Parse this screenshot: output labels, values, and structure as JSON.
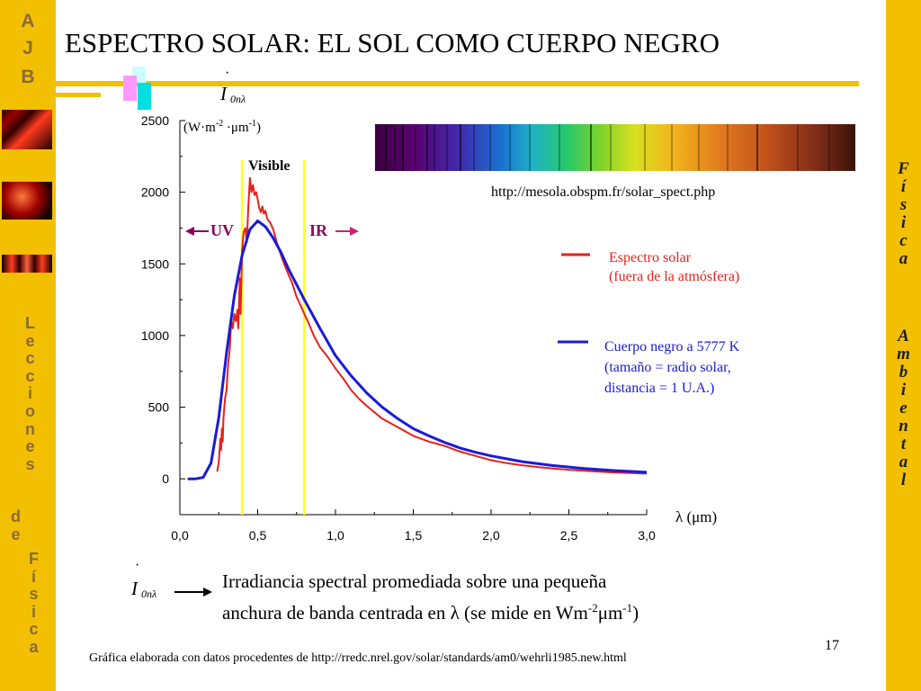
{
  "slide": {
    "title": "ESPECTRO SOLAR: EL SOL COMO CUERPO NEGRO",
    "page_number": "17",
    "footer_credit": "Gráfica elaborada con datos procedentes de http://rredc.nrel.gov/solar/standards/am0/wehrli1985.new.html",
    "spectrum_source": "http://mesola.obspm.fr/solar_spect.php"
  },
  "sidebar_left": {
    "monogram": [
      "A",
      "J",
      "B"
    ],
    "words": [
      "Lecciones",
      "de",
      "Física"
    ]
  },
  "sidebar_right": {
    "words": [
      "Física",
      "Ambiental"
    ]
  },
  "colors": {
    "sidebar": "#f2c000",
    "sidebar_text": "#8a6a3a",
    "solar_spectrum": "#e8201a",
    "blackbody": "#1a1ad8",
    "visible_band": "#ffff33",
    "uv_arrow": "#8a005e",
    "ir_arrow": "#d01f68"
  },
  "formula": {
    "dot": "·",
    "symbol": "I",
    "subscript": "0nλ"
  },
  "definition": {
    "line1": "Irradiancia spectral promediada sobre una pequeña",
    "line2_prefix": "anchura de banda centrada en λ (se mide en Wm",
    "line2_exp1": "-2",
    "line2_mid": "μm",
    "line2_exp2": "-1",
    "line2_suffix": ")"
  },
  "chart_data": {
    "type": "line",
    "title": "",
    "xlabel": "λ (μm)",
    "ylabel_unit": {
      "base": "(W·m",
      "exp1": "-2",
      "mid": " ·μm",
      "exp2": "-1",
      "end": ")"
    },
    "xlim": [
      0,
      3
    ],
    "ylim": [
      -250,
      2500
    ],
    "x_ticks": [
      "0,0",
      "0,5",
      "1,0",
      "1,5",
      "2,0",
      "2,5",
      "3,0"
    ],
    "y_ticks": [
      "0",
      "500",
      "1000",
      "1500",
      "2000",
      "2500"
    ],
    "band_labels": {
      "visible": "Visible",
      "uv": "UV",
      "ir": "IR"
    },
    "visible_range": [
      0.4,
      0.8
    ],
    "series": [
      {
        "name": "Espectro solar",
        "name_line2": "(fuera de la atmósfera)",
        "color": "#e8201a",
        "points": [
          [
            0.24,
            50
          ],
          [
            0.25,
            120
          ],
          [
            0.26,
            280
          ],
          [
            0.265,
            200
          ],
          [
            0.27,
            350
          ],
          [
            0.275,
            260
          ],
          [
            0.28,
            420
          ],
          [
            0.29,
            560
          ],
          [
            0.3,
            620
          ],
          [
            0.31,
            800
          ],
          [
            0.32,
            900
          ],
          [
            0.33,
            1100
          ],
          [
            0.34,
            1050
          ],
          [
            0.35,
            1150
          ],
          [
            0.36,
            1100
          ],
          [
            0.37,
            1180
          ],
          [
            0.375,
            1050
          ],
          [
            0.38,
            1200
          ],
          [
            0.385,
            1400
          ],
          [
            0.39,
            1150
          ],
          [
            0.4,
            1600
          ],
          [
            0.41,
            1720
          ],
          [
            0.42,
            1750
          ],
          [
            0.43,
            1650
          ],
          [
            0.44,
            1900
          ],
          [
            0.45,
            2100
          ],
          [
            0.46,
            2000
          ],
          [
            0.47,
            2050
          ],
          [
            0.48,
            1980
          ],
          [
            0.49,
            2000
          ],
          [
            0.5,
            1950
          ],
          [
            0.51,
            1890
          ],
          [
            0.52,
            1860
          ],
          [
            0.53,
            1900
          ],
          [
            0.54,
            1850
          ],
          [
            0.55,
            1870
          ],
          [
            0.56,
            1820
          ],
          [
            0.57,
            1800
          ],
          [
            0.58,
            1790
          ],
          [
            0.6,
            1740
          ],
          [
            0.62,
            1660
          ],
          [
            0.65,
            1560
          ],
          [
            0.67,
            1500
          ],
          [
            0.7,
            1420
          ],
          [
            0.72,
            1370
          ],
          [
            0.75,
            1270
          ],
          [
            0.78,
            1200
          ],
          [
            0.8,
            1150
          ],
          [
            0.83,
            1080
          ],
          [
            0.86,
            1000
          ],
          [
            0.9,
            920
          ],
          [
            0.95,
            850
          ],
          [
            1.0,
            770
          ],
          [
            1.05,
            700
          ],
          [
            1.1,
            620
          ],
          [
            1.15,
            560
          ],
          [
            1.2,
            510
          ],
          [
            1.3,
            420
          ],
          [
            1.4,
            360
          ],
          [
            1.5,
            300
          ],
          [
            1.6,
            260
          ],
          [
            1.7,
            230
          ],
          [
            1.8,
            190
          ],
          [
            1.9,
            160
          ],
          [
            2.0,
            130
          ],
          [
            2.1,
            110
          ],
          [
            2.2,
            95
          ],
          [
            2.3,
            82
          ],
          [
            2.4,
            72
          ],
          [
            2.5,
            63
          ],
          [
            2.6,
            56
          ],
          [
            2.7,
            50
          ],
          [
            2.8,
            44
          ],
          [
            2.9,
            40
          ],
          [
            3.0,
            36
          ]
        ]
      },
      {
        "name": "Cuerpo negro a 5777 K",
        "name_line2": "(tamaño = radio solar,",
        "name_line3": "distancia = 1 U.A.)",
        "color": "#1a1ad8",
        "points": [
          [
            0.05,
            0
          ],
          [
            0.1,
            0
          ],
          [
            0.15,
            10
          ],
          [
            0.2,
            110
          ],
          [
            0.25,
            430
          ],
          [
            0.3,
            880
          ],
          [
            0.35,
            1280
          ],
          [
            0.4,
            1560
          ],
          [
            0.45,
            1740
          ],
          [
            0.5,
            1800
          ],
          [
            0.55,
            1760
          ],
          [
            0.6,
            1680
          ],
          [
            0.65,
            1580
          ],
          [
            0.7,
            1460
          ],
          [
            0.8,
            1250
          ],
          [
            0.9,
            1050
          ],
          [
            1.0,
            860
          ],
          [
            1.1,
            720
          ],
          [
            1.2,
            600
          ],
          [
            1.3,
            500
          ],
          [
            1.4,
            420
          ],
          [
            1.5,
            350
          ],
          [
            1.6,
            300
          ],
          [
            1.7,
            255
          ],
          [
            1.8,
            215
          ],
          [
            1.9,
            185
          ],
          [
            2.0,
            160
          ],
          [
            2.2,
            120
          ],
          [
            2.4,
            92
          ],
          [
            2.6,
            72
          ],
          [
            2.8,
            57
          ],
          [
            3.0,
            46
          ]
        ]
      }
    ]
  }
}
